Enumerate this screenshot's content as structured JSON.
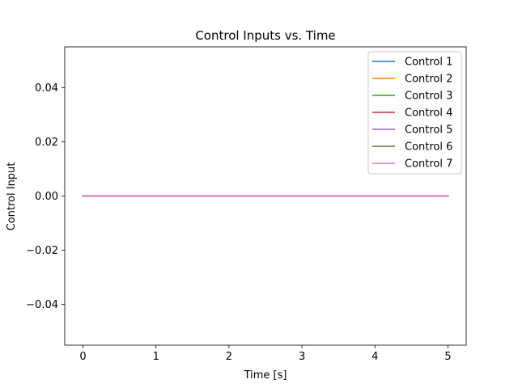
{
  "chart_data": {
    "type": "line",
    "title": "Control Inputs vs. Time",
    "xlabel": "Time [s]",
    "ylabel": "Control Input",
    "xlim": [
      -0.25,
      5.25
    ],
    "ylim": [
      -0.055,
      0.055
    ],
    "xticks": [
      0,
      1,
      2,
      3,
      4,
      5
    ],
    "xtick_labels": [
      "0",
      "1",
      "2",
      "3",
      "4",
      "5"
    ],
    "yticks": [
      -0.04,
      -0.02,
      0.0,
      0.02,
      0.04
    ],
    "ytick_labels": [
      "−0.04",
      "−0.02",
      "0.00",
      "0.02",
      "0.04"
    ],
    "grid": false,
    "legend_position": "top-right",
    "x": [
      0,
      5
    ],
    "series": [
      {
        "name": "Control 1",
        "color": "#1f77b4",
        "values": [
          0,
          0
        ]
      },
      {
        "name": "Control 2",
        "color": "#ff7f0e",
        "values": [
          0,
          0
        ]
      },
      {
        "name": "Control 3",
        "color": "#2ca02c",
        "values": [
          0,
          0
        ]
      },
      {
        "name": "Control 4",
        "color": "#d62728",
        "values": [
          0,
          0
        ]
      },
      {
        "name": "Control 5",
        "color": "#9467bd",
        "values": [
          0,
          0
        ]
      },
      {
        "name": "Control 6",
        "color": "#8c564b",
        "values": [
          0,
          0
        ]
      },
      {
        "name": "Control 7",
        "color": "#e377c2",
        "values": [
          0,
          0
        ]
      }
    ]
  }
}
